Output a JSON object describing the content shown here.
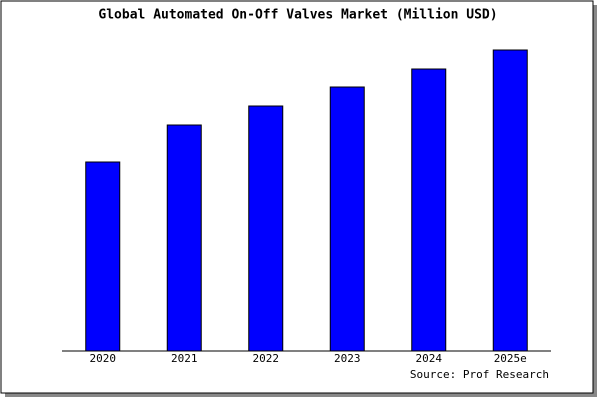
{
  "chart_data": {
    "type": "bar",
    "title": "Global Automated On-Off Valves Market (Million USD)",
    "categories": [
      "2020",
      "2021",
      "2022",
      "2023",
      "2024",
      "2025e"
    ],
    "values": [
      189,
      226,
      245,
      264,
      282,
      301
    ],
    "color": "#0000ff",
    "ylim": [
      0,
      303
    ],
    "source": "Source: Prof Research"
  }
}
